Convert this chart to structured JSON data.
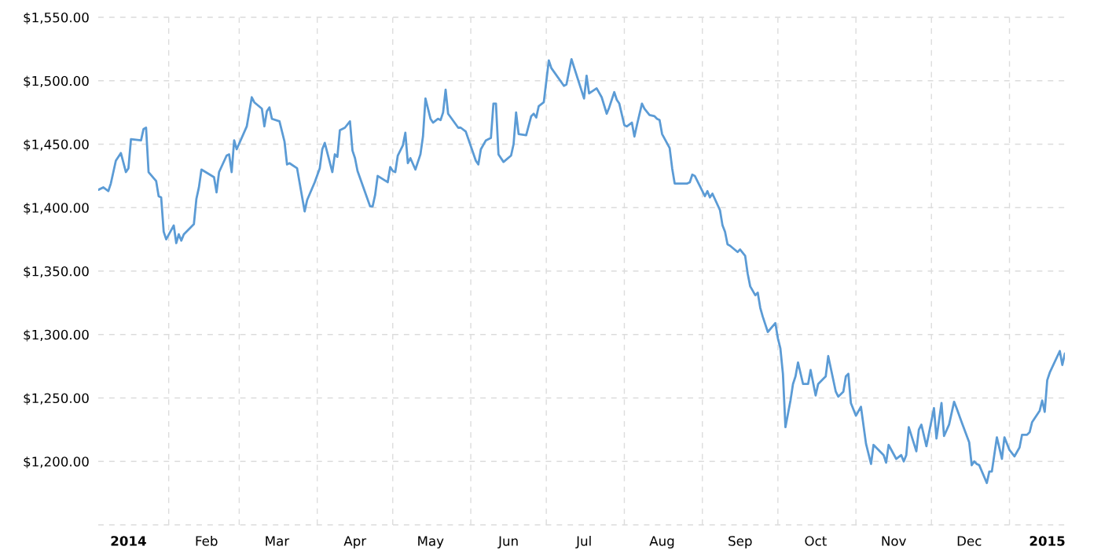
{
  "chart_data": {
    "type": "line",
    "x": [
      "2014-01-04",
      "2014-01-06",
      "2014-01-08",
      "2014-01-09",
      "2014-01-11",
      "2014-01-13",
      "2014-01-15",
      "2014-01-16",
      "2014-01-17",
      "2014-01-21",
      "2014-01-22",
      "2014-01-23",
      "2014-01-24",
      "2014-01-27",
      "2014-01-28",
      "2014-01-29",
      "2014-01-30",
      "2014-01-31",
      "2014-02-03",
      "2014-02-04",
      "2014-02-05",
      "2014-02-06",
      "2014-02-07",
      "2014-02-11",
      "2014-02-12",
      "2014-02-13",
      "2014-02-14",
      "2014-02-19",
      "2014-02-20",
      "2014-02-21",
      "2014-02-24",
      "2014-02-25",
      "2014-02-26",
      "2014-02-27",
      "2014-02-28",
      "2014-03-04",
      "2014-03-06",
      "2014-03-07",
      "2014-03-10",
      "2014-03-11",
      "2014-03-12",
      "2014-03-13",
      "2014-03-14",
      "2014-03-17",
      "2014-03-19",
      "2014-03-20",
      "2014-03-21",
      "2014-03-24",
      "2014-03-27",
      "2014-03-28",
      "2014-03-31",
      "2014-04-02",
      "2014-04-03",
      "2014-04-04",
      "2014-04-07",
      "2014-04-08",
      "2014-04-09",
      "2014-04-10",
      "2014-04-12",
      "2014-04-14",
      "2014-04-15",
      "2014-04-16",
      "2014-04-17",
      "2014-04-22",
      "2014-04-23",
      "2014-04-24",
      "2014-04-25",
      "2014-04-29",
      "2014-04-30",
      "2014-05-01",
      "2014-05-02",
      "2014-05-03",
      "2014-05-05",
      "2014-05-06",
      "2014-05-07",
      "2014-05-08",
      "2014-05-10",
      "2014-05-12",
      "2014-05-13",
      "2014-05-14",
      "2014-05-16",
      "2014-05-17",
      "2014-05-19",
      "2014-05-20",
      "2014-05-21",
      "2014-05-22",
      "2014-05-23",
      "2014-05-27",
      "2014-05-28",
      "2014-05-30",
      "2014-06-03",
      "2014-06-04",
      "2014-06-05",
      "2014-06-07",
      "2014-06-09",
      "2014-06-10",
      "2014-06-11",
      "2014-06-12",
      "2014-06-14",
      "2014-06-17",
      "2014-06-18",
      "2014-06-19",
      "2014-06-20",
      "2014-06-23",
      "2014-06-25",
      "2014-06-26",
      "2014-06-27",
      "2014-06-28",
      "2014-06-30",
      "2014-07-02",
      "2014-07-03",
      "2014-07-08",
      "2014-07-09",
      "2014-07-11",
      "2014-07-16",
      "2014-07-17",
      "2014-07-18",
      "2014-07-21",
      "2014-07-23",
      "2014-07-25",
      "2014-07-26",
      "2014-07-28",
      "2014-07-29",
      "2014-07-30",
      "2014-08-01",
      "2014-08-02",
      "2014-08-04",
      "2014-08-05",
      "2014-08-06",
      "2014-08-08",
      "2014-08-09",
      "2014-08-11",
      "2014-08-13",
      "2014-08-14",
      "2014-08-15",
      "2014-08-16",
      "2014-08-19",
      "2014-08-20",
      "2014-08-21",
      "2014-08-22",
      "2014-08-26",
      "2014-08-27",
      "2014-08-28",
      "2014-08-29",
      "2014-09-02",
      "2014-09-03",
      "2014-09-04",
      "2014-09-05",
      "2014-09-08",
      "2014-09-09",
      "2014-09-10",
      "2014-09-11",
      "2014-09-12",
      "2014-09-15",
      "2014-09-16",
      "2014-09-18",
      "2014-09-19",
      "2014-09-20",
      "2014-09-22",
      "2014-09-23",
      "2014-09-24",
      "2014-09-25",
      "2014-09-27",
      "2014-09-30",
      "2014-10-01",
      "2014-10-02",
      "2014-10-03",
      "2014-10-04",
      "2014-10-06",
      "2014-10-07",
      "2014-10-08",
      "2014-10-09",
      "2014-10-11",
      "2014-10-13",
      "2014-10-14",
      "2014-10-16",
      "2014-10-17",
      "2014-10-20",
      "2014-10-21",
      "2014-10-24",
      "2014-10-25",
      "2014-10-27",
      "2014-10-28",
      "2014-10-29",
      "2014-10-30",
      "2014-11-01",
      "2014-11-03",
      "2014-11-05",
      "2014-11-07",
      "2014-11-08",
      "2014-11-11",
      "2014-11-12",
      "2014-11-13",
      "2014-11-14",
      "2014-11-17",
      "2014-11-19",
      "2014-11-20",
      "2014-11-21",
      "2014-11-22",
      "2014-11-25",
      "2014-11-26",
      "2014-11-27",
      "2014-11-29",
      "2014-12-02",
      "2014-12-03",
      "2014-12-05",
      "2014-12-06",
      "2014-12-08",
      "2014-12-10",
      "2014-12-11",
      "2014-12-13",
      "2014-12-16",
      "2014-12-17",
      "2014-12-18",
      "2014-12-19",
      "2014-12-20",
      "2014-12-23",
      "2014-12-24",
      "2014-12-25",
      "2014-12-27",
      "2014-12-29",
      "2014-12-30",
      "2015-01-01",
      "2015-01-03",
      "2015-01-05",
      "2015-01-06",
      "2015-01-08",
      "2015-01-09",
      "2015-01-10",
      "2015-01-13",
      "2015-01-14",
      "2015-01-15",
      "2015-01-16",
      "2015-01-17",
      "2015-01-21",
      "2015-01-22",
      "2015-01-23"
    ],
    "values": [
      1414,
      1416,
      1413,
      1419,
      1437,
      1443,
      1428,
      1431,
      1454,
      1453,
      1462,
      1463,
      1428,
      1421,
      1409,
      1408,
      1381,
      1375,
      1386,
      1372,
      1379,
      1374,
      1379,
      1387,
      1407,
      1416,
      1430,
      1424,
      1412,
      1428,
      1441,
      1442,
      1428,
      1453,
      1446,
      1464,
      1487,
      1483,
      1478,
      1464,
      1476,
      1479,
      1470,
      1468,
      1452,
      1434,
      1435,
      1431,
      1397,
      1406,
      1420,
      1431,
      1446,
      1451,
      1428,
      1442,
      1440,
      1461,
      1463,
      1468,
      1445,
      1439,
      1429,
      1401,
      1401,
      1410,
      1425,
      1420,
      1432,
      1429,
      1428,
      1441,
      1449,
      1459,
      1435,
      1439,
      1430,
      1442,
      1456,
      1486,
      1470,
      1467,
      1470,
      1469,
      1475,
      1493,
      1474,
      1463,
      1463,
      1460,
      1437,
      1434,
      1446,
      1453,
      1455,
      1482,
      1482,
      1442,
      1436,
      1441,
      1450,
      1475,
      1458,
      1457,
      1472,
      1474,
      1471,
      1480,
      1483,
      1516,
      1510,
      1496,
      1497,
      1517,
      1486,
      1504,
      1490,
      1494,
      1487,
      1474,
      1479,
      1491,
      1485,
      1482,
      1465,
      1464,
      1467,
      1456,
      1465,
      1482,
      1478,
      1473,
      1472,
      1470,
      1469,
      1458,
      1447,
      1431,
      1419,
      1419,
      1419,
      1420,
      1426,
      1425,
      1409,
      1413,
      1408,
      1411,
      1398,
      1386,
      1381,
      1371,
      1370,
      1365,
      1367,
      1362,
      1348,
      1338,
      1331,
      1333,
      1321,
      1314,
      1302,
      1309,
      1297,
      1289,
      1269,
      1227,
      1248,
      1261,
      1267,
      1278,
      1261,
      1261,
      1272,
      1252,
      1261,
      1267,
      1283,
      1255,
      1251,
      1255,
      1267,
      1269,
      1246,
      1236,
      1243,
      1214,
      1198,
      1213,
      1207,
      1205,
      1199,
      1213,
      1202,
      1205,
      1200,
      1205,
      1227,
      1208,
      1225,
      1229,
      1212,
      1242,
      1218,
      1246,
      1220,
      1229,
      1247,
      1242,
      1231,
      1215,
      1197,
      1200,
      1198,
      1197,
      1183,
      1192,
      1192,
      1219,
      1202,
      1219,
      1209,
      1204,
      1211,
      1221,
      1221,
      1223,
      1231,
      1240,
      1248,
      1239,
      1264,
      1270,
      1287,
      1276,
      1285
    ],
    "color": "#5b9bd5",
    "xlim": [
      "2014-01-04",
      "2015-01-23"
    ],
    "xticks": [
      {
        "value": "2014-01-16",
        "label": "2014"
      },
      {
        "value": "2014-02-01",
        "label": null
      },
      {
        "value": "2014-02-16",
        "label": "Feb"
      },
      {
        "value": "2014-03-01",
        "label": null
      },
      {
        "value": "2014-03-16",
        "label": "Mar"
      },
      {
        "value": "2014-04-01",
        "label": null
      },
      {
        "value": "2014-04-16",
        "label": "Apr"
      },
      {
        "value": "2014-05-01",
        "label": null
      },
      {
        "value": "2014-05-16",
        "label": "May"
      },
      {
        "value": "2014-06-01",
        "label": null
      },
      {
        "value": "2014-06-16",
        "label": "Jun"
      },
      {
        "value": "2014-07-01",
        "label": null
      },
      {
        "value": "2014-07-16",
        "label": "Jul"
      },
      {
        "value": "2014-08-01",
        "label": null
      },
      {
        "value": "2014-08-16",
        "label": "Aug"
      },
      {
        "value": "2014-09-01",
        "label": null
      },
      {
        "value": "2014-09-16",
        "label": "Sep"
      },
      {
        "value": "2014-10-01",
        "label": null
      },
      {
        "value": "2014-10-16",
        "label": "Oct"
      },
      {
        "value": "2014-11-01",
        "label": null
      },
      {
        "value": "2014-11-16",
        "label": "Nov"
      },
      {
        "value": "2014-12-01",
        "label": null
      },
      {
        "value": "2014-12-16",
        "label": "Dec"
      },
      {
        "value": "2015-01-01",
        "label": null
      },
      {
        "value": "2015-01-16",
        "label": "2015"
      }
    ],
    "ylim": [
      1150,
      1550
    ],
    "yticks": [
      {
        "value": 1150,
        "label": null
      },
      {
        "value": 1200,
        "label": "$1,200.00"
      },
      {
        "value": 1250,
        "label": "$1,250.00"
      },
      {
        "value": 1300,
        "label": "$1,300.00"
      },
      {
        "value": 1350,
        "label": "$1,350.00"
      },
      {
        "value": 1400,
        "label": "$1,400.00"
      },
      {
        "value": 1450,
        "label": "$1,450.00"
      },
      {
        "value": 1500,
        "label": "$1,500.00"
      },
      {
        "value": 1550,
        "label": "$1,550.00"
      }
    ],
    "grid": true
  }
}
